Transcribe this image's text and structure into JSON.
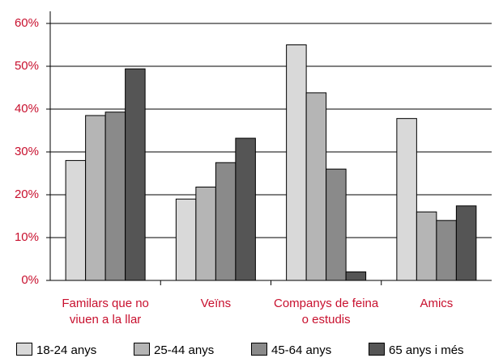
{
  "chart_data": {
    "type": "bar",
    "categories": [
      "Familars que no viuen a la llar",
      "Veïns",
      "Companys de feina o estudis",
      "Amics"
    ],
    "series": [
      {
        "name": "18-24 anys",
        "color": "#d9d9d9",
        "values": [
          28,
          19,
          55,
          37.8
        ]
      },
      {
        "name": "25-44 anys",
        "color": "#b5b5b5",
        "values": [
          38.5,
          21.8,
          43.8,
          16
        ]
      },
      {
        "name": "45-64 anys",
        "color": "#8a8a8a",
        "values": [
          39.3,
          27.5,
          26,
          14
        ]
      },
      {
        "name": "65 anys i més",
        "color": "#555555",
        "values": [
          49.4,
          33.2,
          2,
          17.4
        ]
      }
    ],
    "ylim": [
      0,
      60
    ],
    "yticks": [
      {
        "value": 0,
        "label": "0%"
      },
      {
        "value": 10,
        "label": "10%"
      },
      {
        "value": 20,
        "label": "20%"
      },
      {
        "value": 30,
        "label": "30%"
      },
      {
        "value": 40,
        "label": "40%"
      },
      {
        "value": 50,
        "label": "50%"
      },
      {
        "value": 60,
        "label": "60%"
      }
    ],
    "grid": true
  }
}
